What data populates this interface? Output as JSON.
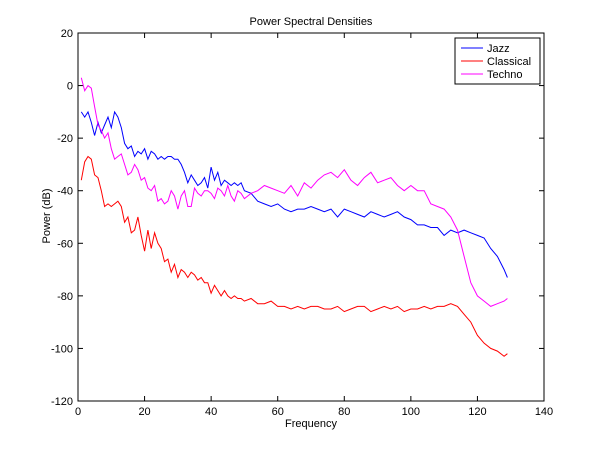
{
  "chart_data": {
    "type": "line",
    "title": "Power Spectral Densities",
    "xlabel": "Frequency",
    "ylabel": "Power (dB)",
    "xlim": [
      0,
      140
    ],
    "ylim": [
      -120,
      20
    ],
    "xticks": [
      0,
      20,
      40,
      60,
      80,
      100,
      120,
      140
    ],
    "yticks": [
      20,
      0,
      -20,
      -40,
      -60,
      -80,
      -100,
      -120
    ],
    "grid": false,
    "legend_position": "top-right",
    "series": [
      {
        "name": "Jazz",
        "color": "#0000ff",
        "x": [
          1,
          2,
          3,
          4,
          5,
          6,
          7,
          8,
          9,
          10,
          11,
          12,
          13,
          14,
          15,
          16,
          17,
          18,
          19,
          20,
          21,
          22,
          23,
          24,
          25,
          26,
          27,
          28,
          29,
          30,
          31,
          32,
          33,
          34,
          35,
          36,
          37,
          38,
          39,
          40,
          41,
          42,
          43,
          44,
          45,
          46,
          47,
          48,
          49,
          50,
          52,
          54,
          56,
          58,
          60,
          62,
          64,
          66,
          68,
          70,
          72,
          74,
          76,
          78,
          80,
          82,
          84,
          86,
          88,
          90,
          92,
          94,
          96,
          98,
          100,
          102,
          104,
          106,
          108,
          110,
          112,
          114,
          116,
          118,
          120,
          122,
          124,
          126,
          128,
          129
        ],
        "y": [
          -10,
          -12,
          -10,
          -14,
          -19,
          -14,
          -18,
          -15,
          -12,
          -16,
          -10,
          -12,
          -16,
          -22,
          -24,
          -23,
          -27,
          -25,
          -26,
          -24,
          -28,
          -25,
          -26,
          -28,
          -27,
          -28,
          -27,
          -27,
          -28,
          -28,
          -30,
          -33,
          -37,
          -34,
          -36,
          -38,
          -37,
          -35,
          -39,
          -31,
          -36,
          -33,
          -38,
          -36,
          -37,
          -38,
          -37,
          -38,
          -37,
          -40,
          -41,
          -44,
          -45,
          -46,
          -45,
          -47,
          -48,
          -47,
          -47,
          -46,
          -47,
          -48,
          -47,
          -50,
          -47,
          -48,
          -49,
          -50,
          -48,
          -49,
          -50,
          -49,
          -48,
          -50,
          -51,
          -53,
          -53,
          -54,
          -54,
          -57,
          -55,
          -56,
          -55,
          -56,
          -57,
          -58,
          -62,
          -65,
          -70,
          -73
        ]
      },
      {
        "name": "Classical",
        "color": "#ff0000",
        "x": [
          1,
          2,
          3,
          4,
          5,
          6,
          7,
          8,
          9,
          10,
          11,
          12,
          13,
          14,
          15,
          16,
          17,
          18,
          19,
          20,
          21,
          22,
          23,
          24,
          25,
          26,
          27,
          28,
          29,
          30,
          31,
          32,
          33,
          34,
          35,
          36,
          37,
          38,
          39,
          40,
          41,
          42,
          43,
          44,
          45,
          46,
          47,
          48,
          49,
          50,
          52,
          54,
          56,
          58,
          60,
          62,
          64,
          66,
          68,
          70,
          72,
          74,
          76,
          78,
          80,
          82,
          84,
          86,
          88,
          90,
          92,
          94,
          96,
          98,
          100,
          102,
          104,
          106,
          108,
          110,
          112,
          114,
          116,
          118,
          120,
          122,
          124,
          126,
          128,
          129
        ],
        "y": [
          -36,
          -29,
          -27,
          -28,
          -34,
          -35,
          -40,
          -46,
          -45,
          -46,
          -45,
          -44,
          -46,
          -52,
          -50,
          -56,
          -55,
          -50,
          -57,
          -63,
          -55,
          -62,
          -56,
          -60,
          -62,
          -67,
          -66,
          -71,
          -68,
          -73,
          -70,
          -71,
          -73,
          -71,
          -72,
          -74,
          -73,
          -75,
          -75,
          -79,
          -76,
          -78,
          -80,
          -78,
          -80,
          -81,
          -80,
          -81,
          -81,
          -82,
          -81,
          -83,
          -83,
          -82,
          -84,
          -84,
          -85,
          -84,
          -85,
          -84,
          -84,
          -85,
          -85,
          -84,
          -86,
          -85,
          -84,
          -84,
          -86,
          -85,
          -84,
          -85,
          -84,
          -86,
          -85,
          -85,
          -84,
          -85,
          -84,
          -84,
          -83,
          -84,
          -87,
          -90,
          -95,
          -98,
          -100,
          -101,
          -103,
          -102
        ]
      },
      {
        "name": "Techno",
        "color": "#ff00ff",
        "x": [
          1,
          2,
          3,
          4,
          5,
          6,
          7,
          8,
          9,
          10,
          11,
          12,
          13,
          14,
          15,
          16,
          17,
          18,
          19,
          20,
          21,
          22,
          23,
          24,
          25,
          26,
          27,
          28,
          29,
          30,
          31,
          32,
          33,
          34,
          35,
          36,
          37,
          38,
          39,
          40,
          41,
          42,
          43,
          44,
          45,
          46,
          47,
          48,
          49,
          50,
          52,
          54,
          56,
          58,
          60,
          62,
          64,
          66,
          68,
          70,
          72,
          74,
          76,
          78,
          80,
          82,
          84,
          86,
          88,
          90,
          92,
          94,
          96,
          98,
          100,
          102,
          104,
          106,
          108,
          110,
          112,
          114,
          116,
          118,
          120,
          122,
          124,
          126,
          128,
          129
        ],
        "y": [
          3,
          -2,
          0,
          -1,
          -8,
          -15,
          -17,
          -20,
          -18,
          -24,
          -28,
          -27,
          -26,
          -30,
          -34,
          -33,
          -30,
          -32,
          -36,
          -35,
          -39,
          -40,
          -38,
          -44,
          -43,
          -45,
          -44,
          -40,
          -42,
          -47,
          -42,
          -40,
          -46,
          -46,
          -39,
          -41,
          -42,
          -40,
          -40,
          -41,
          -43,
          -39,
          -40,
          -42,
          -38,
          -42,
          -44,
          -40,
          -41,
          -43,
          -41,
          -40,
          -38,
          -39,
          -40,
          -41,
          -38,
          -42,
          -37,
          -39,
          -36,
          -34,
          -33,
          -35,
          -32,
          -36,
          -38,
          -35,
          -33,
          -37,
          -36,
          -35,
          -38,
          -40,
          -38,
          -40,
          -40,
          -45,
          -46,
          -47,
          -50,
          -55,
          -65,
          -75,
          -80,
          -82,
          -84,
          -83,
          -82,
          -81
        ]
      }
    ]
  }
}
